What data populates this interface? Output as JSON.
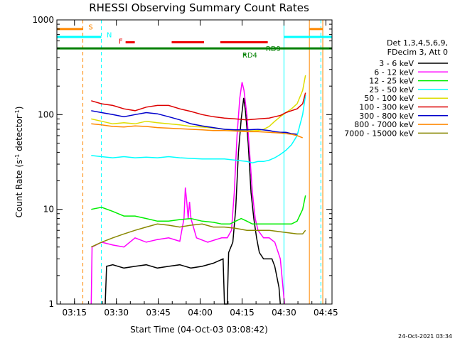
{
  "chart_data": {
    "type": "line",
    "title": "RHESSI Observing Summary Count Rates",
    "xlabel": "Start Time (04-Oct-03 03:08:42)",
    "ylabel": "Count Rate (s",
    "ylabel_sup1": "-1",
    "ylabel_mid": " detector",
    "ylabel_sup2": "-1",
    "ylabel_end": ")",
    "ylog": true,
    "ylim": [
      1,
      1000
    ],
    "xlim_minutes": [
      0,
      98.5
    ],
    "x_ticks": [
      {
        "minute": 6.3,
        "label": "03:15"
      },
      {
        "minute": 21.3,
        "label": "03:30"
      },
      {
        "minute": 36.3,
        "label": "03:45"
      },
      {
        "minute": 51.3,
        "label": "04:00"
      },
      {
        "minute": 66.3,
        "label": "04:15"
      },
      {
        "minute": 81.3,
        "label": "04:30"
      },
      {
        "minute": 96.3,
        "label": "04:45"
      }
    ],
    "y_tick_labels": [
      {
        "value": 1,
        "label": "1"
      },
      {
        "value": 10,
        "label": "10"
      },
      {
        "value": 100,
        "label": "100"
      },
      {
        "value": 1000,
        "label": "1000"
      }
    ],
    "legend_header": [
      "Det 1,3,4,5,6,9,",
      "FDecim 3, Att 0"
    ],
    "footer_date": "24-Oct-2021 03:34",
    "series": [
      {
        "name": "3 - 6 keV",
        "color": "#000000",
        "points": [
          [
            17.3,
            1
          ],
          [
            17.8,
            2.5
          ],
          [
            20,
            2.6
          ],
          [
            24,
            2.4
          ],
          [
            28,
            2.5
          ],
          [
            32,
            2.6
          ],
          [
            36,
            2.4
          ],
          [
            40,
            2.5
          ],
          [
            44,
            2.6
          ],
          [
            48,
            2.4
          ],
          [
            52,
            2.5
          ],
          [
            56,
            2.7
          ],
          [
            59.5,
            3
          ],
          [
            60,
            1
          ],
          [
            61,
            1
          ],
          [
            61.5,
            3.5
          ],
          [
            63,
            4.5
          ],
          [
            64,
            10
          ],
          [
            65,
            40
          ],
          [
            66,
            90
          ],
          [
            66.9,
            150
          ],
          [
            67.5,
            110
          ],
          [
            68.5,
            50
          ],
          [
            69.5,
            15
          ],
          [
            70.5,
            8
          ],
          [
            71.5,
            5
          ],
          [
            72.5,
            3.5
          ],
          [
            74,
            3
          ],
          [
            76,
            3
          ],
          [
            77,
            3
          ],
          [
            78,
            2.5
          ],
          [
            79.5,
            1.5
          ],
          [
            80,
            1
          ]
        ]
      },
      {
        "name": "6 - 12 keV",
        "color": "#ff00ff",
        "points": [
          [
            12.3,
            1
          ],
          [
            12.6,
            4
          ],
          [
            16,
            4.5
          ],
          [
            20,
            4.2
          ],
          [
            24,
            4
          ],
          [
            28,
            5
          ],
          [
            32,
            4.5
          ],
          [
            36,
            4.8
          ],
          [
            40,
            5
          ],
          [
            44,
            4.6
          ],
          [
            45.5,
            8
          ],
          [
            46,
            17
          ],
          [
            46.5,
            12
          ],
          [
            47,
            8
          ],
          [
            47.5,
            12
          ],
          [
            48,
            8
          ],
          [
            50,
            5
          ],
          [
            54,
            4.5
          ],
          [
            57,
            4.8
          ],
          [
            59,
            5
          ],
          [
            61,
            5
          ],
          [
            62.5,
            6
          ],
          [
            63.5,
            15
          ],
          [
            64.5,
            60
          ],
          [
            65.5,
            150
          ],
          [
            66.3,
            220
          ],
          [
            67,
            180
          ],
          [
            68,
            100
          ],
          [
            69,
            40
          ],
          [
            70,
            15
          ],
          [
            71,
            8
          ],
          [
            72,
            6
          ],
          [
            74,
            5
          ],
          [
            76,
            5
          ],
          [
            78,
            4.5
          ],
          [
            80,
            3
          ],
          [
            81.5,
            1
          ]
        ]
      },
      {
        "name": "12 - 25 keV",
        "color": "#00ee00",
        "points": [
          [
            12.3,
            10
          ],
          [
            16,
            10.5
          ],
          [
            20,
            9.5
          ],
          [
            24,
            8.5
          ],
          [
            28,
            8.5
          ],
          [
            32,
            8
          ],
          [
            36,
            7.5
          ],
          [
            40,
            7.5
          ],
          [
            44,
            7.8
          ],
          [
            48,
            8
          ],
          [
            52,
            7.5
          ],
          [
            56,
            7.3
          ],
          [
            59,
            7
          ],
          [
            62,
            7
          ],
          [
            64,
            7.5
          ],
          [
            66,
            8
          ],
          [
            68,
            7.5
          ],
          [
            70,
            7
          ],
          [
            72,
            7
          ],
          [
            74,
            7
          ],
          [
            76,
            7
          ],
          [
            78,
            7
          ],
          [
            80,
            7
          ],
          [
            82,
            7
          ],
          [
            84,
            7
          ],
          [
            86,
            7.5
          ],
          [
            88,
            10
          ],
          [
            89,
            14
          ]
        ]
      },
      {
        "name": "25 - 50 keV",
        "color": "#00ffff",
        "points": [
          [
            12.3,
            37
          ],
          [
            16,
            36
          ],
          [
            20,
            35
          ],
          [
            24,
            36
          ],
          [
            28,
            35
          ],
          [
            32,
            35.5
          ],
          [
            36,
            35
          ],
          [
            40,
            36
          ],
          [
            44,
            35
          ],
          [
            48,
            34.5
          ],
          [
            52,
            34
          ],
          [
            56,
            34
          ],
          [
            60,
            34
          ],
          [
            64,
            33
          ],
          [
            68,
            32
          ],
          [
            70,
            31
          ],
          [
            72,
            32
          ],
          [
            74,
            32
          ],
          [
            76,
            33
          ],
          [
            78,
            35
          ],
          [
            80,
            38
          ],
          [
            82,
            42
          ],
          [
            84,
            48
          ],
          [
            86,
            60
          ],
          [
            88,
            100
          ],
          [
            89,
            160
          ]
        ]
      },
      {
        "name": "50 - 100 keV",
        "color": "#dddd00",
        "points": [
          [
            12.3,
            90
          ],
          [
            16,
            85
          ],
          [
            20,
            80
          ],
          [
            24,
            82
          ],
          [
            28,
            80
          ],
          [
            32,
            85
          ],
          [
            36,
            82
          ],
          [
            40,
            80
          ],
          [
            44,
            78
          ],
          [
            48,
            75
          ],
          [
            52,
            74
          ],
          [
            56,
            72
          ],
          [
            60,
            70
          ],
          [
            64,
            68
          ],
          [
            68,
            67
          ],
          [
            72,
            68
          ],
          [
            74,
            70
          ],
          [
            76,
            75
          ],
          [
            78,
            85
          ],
          [
            80,
            95
          ],
          [
            82,
            105
          ],
          [
            84,
            115
          ],
          [
            86,
            130
          ],
          [
            88,
            180
          ],
          [
            89,
            260
          ]
        ]
      },
      {
        "name": "100 - 300 keV",
        "color": "#dd0000",
        "points": [
          [
            12.3,
            140
          ],
          [
            16,
            130
          ],
          [
            20,
            125
          ],
          [
            24,
            115
          ],
          [
            28,
            110
          ],
          [
            32,
            120
          ],
          [
            36,
            125
          ],
          [
            40,
            125
          ],
          [
            44,
            115
          ],
          [
            48,
            108
          ],
          [
            52,
            100
          ],
          [
            56,
            95
          ],
          [
            60,
            92
          ],
          [
            64,
            90
          ],
          [
            68,
            88
          ],
          [
            72,
            90
          ],
          [
            76,
            92
          ],
          [
            78,
            95
          ],
          [
            80,
            98
          ],
          [
            82,
            105
          ],
          [
            84,
            110
          ],
          [
            86,
            115
          ],
          [
            88,
            130
          ],
          [
            89,
            170
          ]
        ]
      },
      {
        "name": "300 - 800 keV",
        "color": "#0000cc",
        "points": [
          [
            12.3,
            110
          ],
          [
            16,
            105
          ],
          [
            20,
            100
          ],
          [
            24,
            95
          ],
          [
            28,
            100
          ],
          [
            32,
            105
          ],
          [
            36,
            102
          ],
          [
            40,
            95
          ],
          [
            44,
            88
          ],
          [
            48,
            80
          ],
          [
            52,
            76
          ],
          [
            56,
            73
          ],
          [
            60,
            70
          ],
          [
            64,
            69
          ],
          [
            68,
            69
          ],
          [
            72,
            70
          ],
          [
            76,
            68
          ],
          [
            78,
            66
          ],
          [
            80,
            65
          ],
          [
            82,
            65
          ],
          [
            84,
            63
          ],
          [
            86,
            62
          ]
        ]
      },
      {
        "name": "800 - 7000 keV",
        "color": "#ff8800",
        "points": [
          [
            12.3,
            80
          ],
          [
            16,
            78
          ],
          [
            20,
            75
          ],
          [
            24,
            74
          ],
          [
            28,
            76
          ],
          [
            32,
            75
          ],
          [
            36,
            73
          ],
          [
            40,
            72
          ],
          [
            44,
            71
          ],
          [
            48,
            70
          ],
          [
            52,
            69
          ],
          [
            56,
            68
          ],
          [
            60,
            68
          ],
          [
            64,
            67
          ],
          [
            68,
            66
          ],
          [
            72,
            66
          ],
          [
            76,
            65
          ],
          [
            80,
            64
          ],
          [
            84,
            62
          ],
          [
            86,
            60
          ],
          [
            88,
            57
          ]
        ]
      },
      {
        "name": "7000 - 15000 keV",
        "color": "#888800",
        "points": [
          [
            12.3,
            4
          ],
          [
            16,
            4.5
          ],
          [
            20,
            5
          ],
          [
            24,
            5.5
          ],
          [
            28,
            6
          ],
          [
            32,
            6.5
          ],
          [
            36,
            7
          ],
          [
            40,
            6.8
          ],
          [
            44,
            6.5
          ],
          [
            48,
            6.8
          ],
          [
            52,
            7
          ],
          [
            56,
            6.5
          ],
          [
            60,
            6.5
          ],
          [
            64,
            6.3
          ],
          [
            68,
            6
          ],
          [
            72,
            6
          ],
          [
            76,
            6
          ],
          [
            80,
            5.8
          ],
          [
            84,
            5.6
          ],
          [
            86,
            5.5
          ],
          [
            88,
            5.5
          ],
          [
            89,
            6
          ]
        ]
      }
    ],
    "vertical_lines": [
      {
        "minute": 9.3,
        "color": "#ff8800",
        "dashed": true
      },
      {
        "minute": 15.9,
        "color": "#00ffff",
        "dashed": true
      },
      {
        "minute": 81.3,
        "color": "#00ffff",
        "dashed": false
      },
      {
        "minute": 90.4,
        "color": "#ff8800",
        "dashed": false
      },
      {
        "minute": 94.5,
        "color": "#00ffff",
        "dashed": true
      },
      {
        "minute": 95.2,
        "color": "#ff8800",
        "dashed": false
      }
    ],
    "flag_bars": [
      {
        "label": "S",
        "color": "#ff8800",
        "level": 800,
        "segments": [
          [
            0,
            9.3
          ],
          [
            90.4,
            95.2
          ]
        ]
      },
      {
        "label": "N",
        "color": "#00ffff",
        "level": 660,
        "segments": [
          [
            0,
            15.9
          ],
          [
            81.3,
            98.5
          ]
        ]
      },
      {
        "label": "F",
        "color": "#ee0000",
        "level": 580,
        "segments": [
          [
            24.6,
            27.9
          ],
          [
            41.1,
            52.7
          ],
          [
            58.5,
            75.5
          ]
        ]
      },
      {
        "label": "",
        "color": "#008000",
        "level": 500,
        "segments": [
          [
            0,
            98.5
          ]
        ]
      }
    ],
    "flag_labels": [
      {
        "text": "S",
        "minute": 11.3,
        "level": 850,
        "color": "#ff8800"
      },
      {
        "text": "N",
        "minute": 17.8,
        "level": 700,
        "color": "#00ffff"
      },
      {
        "text": "F",
        "minute": 22.1,
        "level": 600,
        "color": "#ee0000"
      },
      {
        "text": "RD9",
        "minute": 74.8,
        "level": 500,
        "color": "#008000"
      },
      {
        "text": "RD4",
        "minute": 66.4,
        "level": 430,
        "color": "#008000"
      }
    ]
  }
}
